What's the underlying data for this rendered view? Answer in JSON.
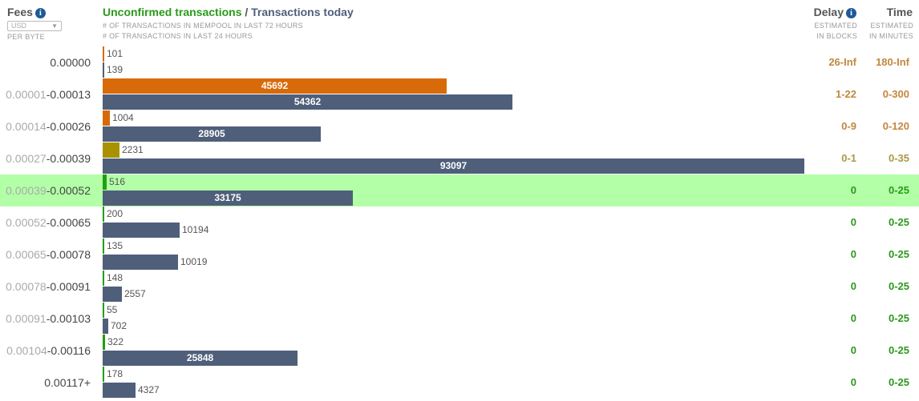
{
  "header": {
    "fees_title": "Fees",
    "currency": "USD",
    "per_byte": "PER BYTE",
    "title_unconfirmed": "Unconfirmed transactions",
    "title_sep": " / ",
    "title_today": "Transactions today",
    "sub_mempool": "# OF TRANSACTIONS IN MEMPOOL IN LAST 72 HOURS",
    "sub_24h": "# OF TRANSACTIONS IN LAST 24 HOURS",
    "delay_title": "Delay",
    "delay_sub1": "ESTIMATED",
    "delay_sub2": "IN BLOCKS",
    "time_title": "Time",
    "time_sub1": "ESTIMATED",
    "time_sub2": "IN MINUTES"
  },
  "colors": {
    "today_bar": "#4f5f7a",
    "highlight_row": "#b3ffa8"
  },
  "chart_data": {
    "type": "bar",
    "categories": [
      "0.00000",
      "0.00001-0.00013",
      "0.00014-0.00026",
      "0.00027-0.00039",
      "0.00039-0.00052",
      "0.00052-0.00065",
      "0.00065-0.00078",
      "0.00078-0.00091",
      "0.00091-0.00103",
      "0.00104-0.00116",
      "0.00117+"
    ],
    "series": [
      {
        "name": "Unconfirmed transactions",
        "values": [
          101,
          45692,
          1004,
          2231,
          516,
          200,
          135,
          148,
          55,
          322,
          178
        ]
      },
      {
        "name": "Transactions today",
        "values": [
          139,
          54362,
          28905,
          93097,
          33175,
          10194,
          10019,
          2557,
          702,
          25848,
          4327
        ]
      }
    ]
  },
  "rows": [
    {
      "fee_lo": "",
      "fee_hi": "0.00000",
      "unconfirmed": "101",
      "today": "139",
      "delay": [
        "26",
        "-Inf"
      ],
      "time": [
        "180",
        "-Inf"
      ],
      "delay_color": "#c3873f",
      "bar_color": "#d96a0a",
      "highlight": false
    },
    {
      "fee_lo": "0.00001",
      "fee_hi": "-0.00013",
      "unconfirmed": "45692",
      "today": "54362",
      "delay": [
        "1",
        "-22"
      ],
      "time": [
        "0",
        "-300"
      ],
      "delay_color": "#c3873f",
      "bar_color": "#d96a0a",
      "highlight": false
    },
    {
      "fee_lo": "0.00014",
      "fee_hi": "-0.00026",
      "unconfirmed": "1004",
      "today": "28905",
      "delay": [
        "0",
        "-9"
      ],
      "time": [
        "0",
        "-120"
      ],
      "delay_color": "#c3873f",
      "bar_color": "#d96a0a",
      "highlight": false
    },
    {
      "fee_lo": "0.00027",
      "fee_hi": "-0.00039",
      "unconfirmed": "2231",
      "today": "93097",
      "delay": [
        "0",
        "-1"
      ],
      "time": [
        "0",
        "-35"
      ],
      "delay_color": "#a89a45",
      "bar_color": "#a89200",
      "highlight": false
    },
    {
      "fee_lo": "0.00039",
      "fee_hi": "-0.00052",
      "unconfirmed": "516",
      "today": "33175",
      "delay": [
        "0",
        ""
      ],
      "time": [
        "0",
        "-25"
      ],
      "delay_color": "#2a9a1a",
      "bar_color": "#1fa010",
      "highlight": true
    },
    {
      "fee_lo": "0.00052",
      "fee_hi": "-0.00065",
      "unconfirmed": "200",
      "today": "10194",
      "delay": [
        "0",
        ""
      ],
      "time": [
        "0",
        "-25"
      ],
      "delay_color": "#2a9a1a",
      "bar_color": "#1fa010",
      "highlight": false
    },
    {
      "fee_lo": "0.00065",
      "fee_hi": "-0.00078",
      "unconfirmed": "135",
      "today": "10019",
      "delay": [
        "0",
        ""
      ],
      "time": [
        "0",
        "-25"
      ],
      "delay_color": "#2a9a1a",
      "bar_color": "#1fa010",
      "highlight": false
    },
    {
      "fee_lo": "0.00078",
      "fee_hi": "-0.00091",
      "unconfirmed": "148",
      "today": "2557",
      "delay": [
        "0",
        ""
      ],
      "time": [
        "0",
        "-25"
      ],
      "delay_color": "#2a9a1a",
      "bar_color": "#1fa010",
      "highlight": false
    },
    {
      "fee_lo": "0.00091",
      "fee_hi": "-0.00103",
      "unconfirmed": "55",
      "today": "702",
      "delay": [
        "0",
        ""
      ],
      "time": [
        "0",
        "-25"
      ],
      "delay_color": "#2a9a1a",
      "bar_color": "#1fa010",
      "highlight": false
    },
    {
      "fee_lo": "0.00104",
      "fee_hi": "-0.00116",
      "unconfirmed": "322",
      "today": "25848",
      "delay": [
        "0",
        ""
      ],
      "time": [
        "0",
        "-25"
      ],
      "delay_color": "#2a9a1a",
      "bar_color": "#1fa010",
      "highlight": false
    },
    {
      "fee_lo": "",
      "fee_hi": "0.00117+",
      "unconfirmed": "178",
      "today": "4327",
      "delay": [
        "0",
        ""
      ],
      "time": [
        "0",
        "-25"
      ],
      "delay_color": "#2a9a1a",
      "bar_color": "#1fa010",
      "highlight": false
    }
  ]
}
